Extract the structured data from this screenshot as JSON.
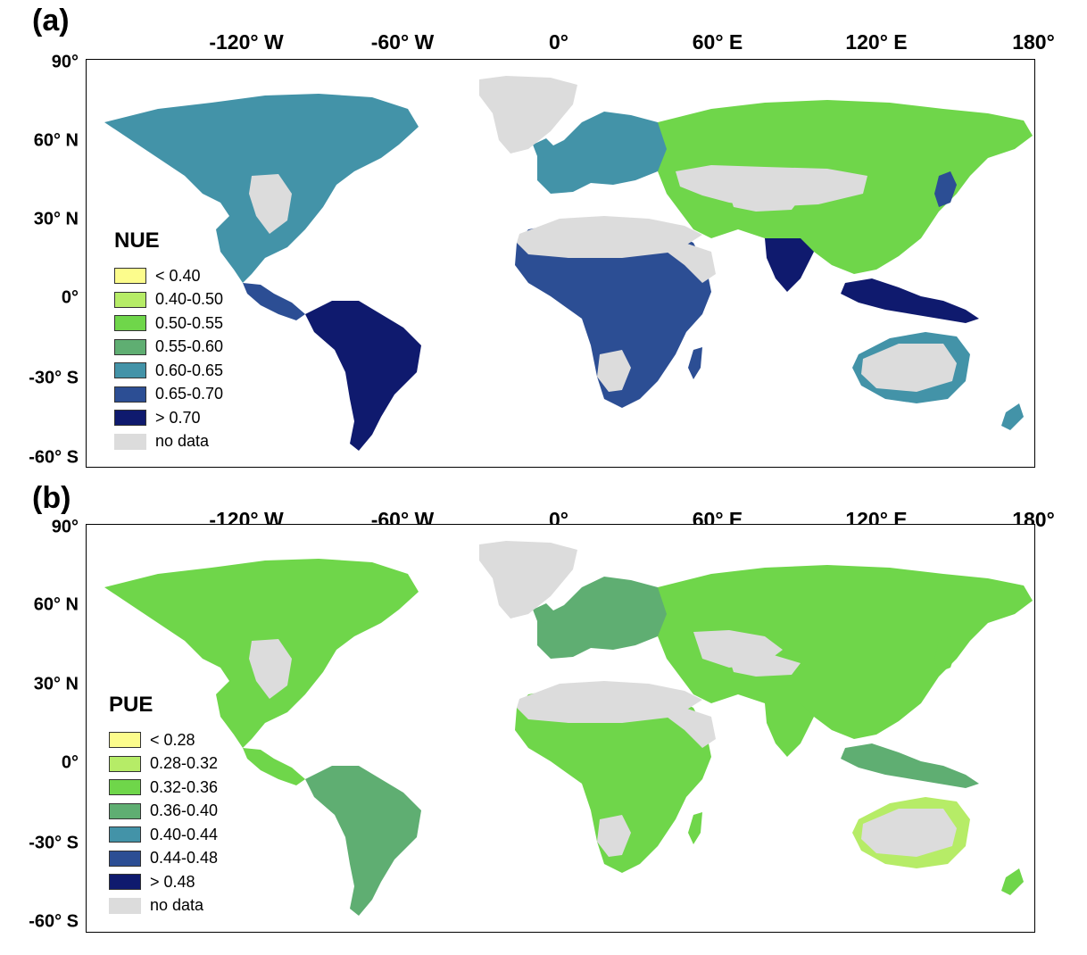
{
  "figure": {
    "longitude_ticks": [
      "-120° W",
      "-60° W",
      "0°",
      "60° E",
      "120° E",
      "180°"
    ],
    "latitude_ticks": [
      "90°",
      "60° N",
      "30° N",
      "0°",
      "-30° S",
      "-60° S"
    ]
  },
  "panels": [
    {
      "label": "(a)",
      "legend": {
        "title": "NUE",
        "items": [
          {
            "label": "< 0.40",
            "color": "#fcfc8c"
          },
          {
            "label": "0.40-0.50",
            "color": "#b6ec67"
          },
          {
            "label": "0.50-0.55",
            "color": "#6fd64a"
          },
          {
            "label": "0.55-0.60",
            "color": "#5fae72"
          },
          {
            "label": "0.60-0.65",
            "color": "#4393a8"
          },
          {
            "label": "0.65-0.70",
            "color": "#2c4e94"
          },
          {
            "label": "> 0.70",
            "color": "#0f1a6e"
          },
          {
            "label": "no data",
            "color": "#dcdcdc"
          }
        ]
      }
    },
    {
      "label": "(b)",
      "legend": {
        "title": "PUE",
        "items": [
          {
            "label": "< 0.28",
            "color": "#fcfc8c"
          },
          {
            "label": "0.28-0.32",
            "color": "#b6ec67"
          },
          {
            "label": "0.32-0.36",
            "color": "#6fd64a"
          },
          {
            "label": "0.36-0.40",
            "color": "#5fae72"
          },
          {
            "label": "0.40-0.44",
            "color": "#4393a8"
          },
          {
            "label": "0.44-0.48",
            "color": "#2c4e94"
          },
          {
            "label": "> 0.48",
            "color": "#0f1a6e"
          },
          {
            "label": "no data",
            "color": "#dcdcdc"
          }
        ]
      }
    }
  ]
}
